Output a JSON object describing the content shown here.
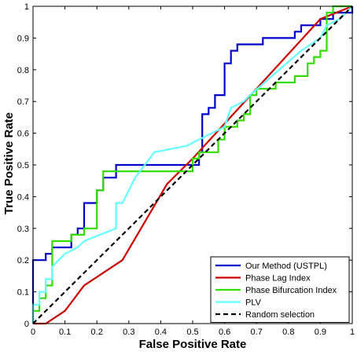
{
  "chart_data": {
    "type": "line",
    "xlabel": "False Positive Rate",
    "ylabel": "True Positive Rate",
    "xlim": [
      0,
      1
    ],
    "ylim": [
      0,
      1
    ],
    "xticks": [
      "0",
      "0.1",
      "0.2",
      "0.3",
      "0.4",
      "0.5",
      "0.6",
      "0.7",
      "0.8",
      "0.9",
      "1"
    ],
    "yticks": [
      "0",
      "0.1",
      "0.2",
      "0.3",
      "0.4",
      "0.5",
      "0.6",
      "0.7",
      "0.8",
      "0.9",
      "1"
    ],
    "grid": false,
    "legend_position": "bottom-right",
    "series": [
      {
        "name": "Our Method (USTPL)",
        "color": "#0000cc",
        "dashed": false,
        "points": [
          [
            0,
            0
          ],
          [
            0,
            0.2
          ],
          [
            0.04,
            0.2
          ],
          [
            0.04,
            0.22
          ],
          [
            0.06,
            0.22
          ],
          [
            0.06,
            0.24
          ],
          [
            0.12,
            0.24
          ],
          [
            0.12,
            0.28
          ],
          [
            0.14,
            0.28
          ],
          [
            0.14,
            0.3
          ],
          [
            0.16,
            0.3
          ],
          [
            0.16,
            0.38
          ],
          [
            0.2,
            0.38
          ],
          [
            0.2,
            0.42
          ],
          [
            0.22,
            0.42
          ],
          [
            0.22,
            0.46
          ],
          [
            0.26,
            0.46
          ],
          [
            0.26,
            0.5
          ],
          [
            0.52,
            0.5
          ],
          [
            0.52,
            0.54
          ],
          [
            0.53,
            0.54
          ],
          [
            0.53,
            0.66
          ],
          [
            0.55,
            0.66
          ],
          [
            0.55,
            0.68
          ],
          [
            0.57,
            0.68
          ],
          [
            0.57,
            0.72
          ],
          [
            0.6,
            0.72
          ],
          [
            0.6,
            0.82
          ],
          [
            0.62,
            0.82
          ],
          [
            0.62,
            0.86
          ],
          [
            0.64,
            0.86
          ],
          [
            0.64,
            0.88
          ],
          [
            0.72,
            0.88
          ],
          [
            0.72,
            0.9
          ],
          [
            0.82,
            0.9
          ],
          [
            0.82,
            0.92
          ],
          [
            0.84,
            0.92
          ],
          [
            0.84,
            0.94
          ],
          [
            0.9,
            0.94
          ],
          [
            0.9,
            0.96
          ],
          [
            0.94,
            0.96
          ],
          [
            0.94,
            0.98
          ],
          [
            1,
            0.98
          ],
          [
            1,
            1
          ]
        ]
      },
      {
        "name": "Phase Lag Index",
        "color": "#cc0000",
        "dashed": false,
        "points": [
          [
            0,
            0
          ],
          [
            0.04,
            0
          ],
          [
            0.1,
            0.04
          ],
          [
            0.16,
            0.12
          ],
          [
            0.28,
            0.2
          ],
          [
            0.42,
            0.44
          ],
          [
            0.5,
            0.52
          ],
          [
            0.9,
            0.96
          ],
          [
            1,
            1
          ]
        ]
      },
      {
        "name": "Phase Bifurcation Index",
        "color": "#33dd00",
        "dashed": false,
        "points": [
          [
            0,
            0
          ],
          [
            0,
            0.04
          ],
          [
            0.02,
            0.04
          ],
          [
            0.02,
            0.08
          ],
          [
            0.04,
            0.08
          ],
          [
            0.04,
            0.12
          ],
          [
            0.06,
            0.12
          ],
          [
            0.06,
            0.26
          ],
          [
            0.12,
            0.26
          ],
          [
            0.12,
            0.28
          ],
          [
            0.16,
            0.28
          ],
          [
            0.16,
            0.3
          ],
          [
            0.2,
            0.3
          ],
          [
            0.2,
            0.42
          ],
          [
            0.22,
            0.42
          ],
          [
            0.22,
            0.48
          ],
          [
            0.5,
            0.48
          ],
          [
            0.5,
            0.52
          ],
          [
            0.52,
            0.52
          ],
          [
            0.52,
            0.54
          ],
          [
            0.58,
            0.54
          ],
          [
            0.58,
            0.58
          ],
          [
            0.6,
            0.58
          ],
          [
            0.6,
            0.62
          ],
          [
            0.64,
            0.62
          ],
          [
            0.64,
            0.64
          ],
          [
            0.66,
            0.64
          ],
          [
            0.66,
            0.66
          ],
          [
            0.68,
            0.66
          ],
          [
            0.68,
            0.72
          ],
          [
            0.7,
            0.72
          ],
          [
            0.7,
            0.74
          ],
          [
            0.76,
            0.74
          ],
          [
            0.76,
            0.76
          ],
          [
            0.82,
            0.76
          ],
          [
            0.82,
            0.78
          ],
          [
            0.86,
            0.78
          ],
          [
            0.86,
            0.82
          ],
          [
            0.88,
            0.82
          ],
          [
            0.88,
            0.84
          ],
          [
            0.9,
            0.84
          ],
          [
            0.9,
            0.86
          ],
          [
            0.92,
            0.86
          ],
          [
            0.92,
            0.98
          ],
          [
            0.94,
            0.98
          ],
          [
            0.94,
            1
          ],
          [
            1,
            1
          ]
        ]
      },
      {
        "name": "PLV",
        "color": "#66ffff",
        "dashed": false,
        "points": [
          [
            0,
            0
          ],
          [
            0,
            0.06
          ],
          [
            0.02,
            0.06
          ],
          [
            0.02,
            0.1
          ],
          [
            0.04,
            0.1
          ],
          [
            0.04,
            0.14
          ],
          [
            0.06,
            0.14
          ],
          [
            0.06,
            0.18
          ],
          [
            0.08,
            0.2
          ],
          [
            0.1,
            0.22
          ],
          [
            0.14,
            0.24
          ],
          [
            0.16,
            0.26
          ],
          [
            0.26,
            0.3
          ],
          [
            0.26,
            0.38
          ],
          [
            0.28,
            0.38
          ],
          [
            0.32,
            0.46
          ],
          [
            0.38,
            0.54
          ],
          [
            0.48,
            0.56
          ],
          [
            0.6,
            0.62
          ],
          [
            0.62,
            0.68
          ],
          [
            0.66,
            0.7
          ],
          [
            0.68,
            0.72
          ],
          [
            0.84,
            0.86
          ],
          [
            0.9,
            0.9
          ],
          [
            0.92,
            0.94
          ],
          [
            0.96,
            0.96
          ],
          [
            0.98,
            0.98
          ],
          [
            1,
            1
          ]
        ]
      },
      {
        "name": "Random selection",
        "color": "#000000",
        "dashed": true,
        "points": [
          [
            0,
            0
          ],
          [
            1,
            1
          ]
        ]
      }
    ]
  }
}
